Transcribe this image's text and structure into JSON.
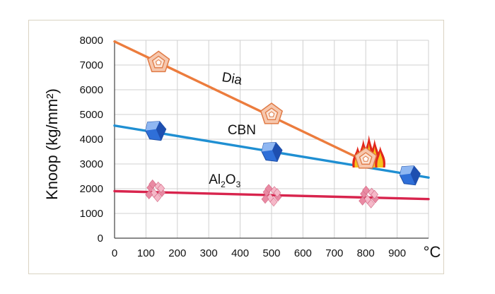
{
  "chart_data": {
    "type": "line",
    "title": "",
    "xlabel": "°C",
    "ylabel": "Knoop (kg/mm²)",
    "xlim": [
      0,
      1000
    ],
    "ylim": [
      0,
      8000
    ],
    "x_ticks": [
      "0",
      "100",
      "200",
      "300",
      "400",
      "500",
      "600",
      "700",
      "800",
      "900"
    ],
    "y_ticks": [
      "0",
      "1000",
      "2000",
      "3000",
      "4000",
      "5000",
      "6000",
      "7000",
      "8000"
    ],
    "grid": true,
    "series": [
      {
        "name": "Dia",
        "color": "#ec7c3d",
        "x": [
          0,
          800
        ],
        "y": [
          7950,
          3100
        ],
        "marker": "diamond-crystal-icon",
        "marker_x": [
          140,
          500,
          800
        ],
        "marker_y": [
          7100,
          5000,
          3200
        ]
      },
      {
        "name": "CBN",
        "color": "#1f8fd2",
        "x": [
          0,
          1000
        ],
        "y": [
          4550,
          2450
        ],
        "marker": "cbn-crystal-icon",
        "marker_x": [
          130,
          500,
          940
        ],
        "marker_y": [
          4350,
          3500,
          2550
        ]
      },
      {
        "name": "Al2O3",
        "color": "#d8244d",
        "x": [
          0,
          1000
        ],
        "y": [
          1900,
          1580
        ],
        "marker": "alumina-crystal-icon",
        "marker_x": [
          130,
          500,
          810
        ],
        "marker_y": [
          1900,
          1720,
          1650
        ]
      }
    ],
    "annotations": [
      {
        "text": "Dia",
        "x": 340,
        "y": 6350
      },
      {
        "text": "CBN",
        "x": 360,
        "y": 4200
      },
      {
        "text_main": "Al",
        "text_sub1": "2",
        "text_mid": "O",
        "text_sub2": "3",
        "x": 300,
        "y": 2200
      }
    ],
    "flame_icon": {
      "name": "flame-icon",
      "x": 810,
      "y": 3600
    }
  }
}
